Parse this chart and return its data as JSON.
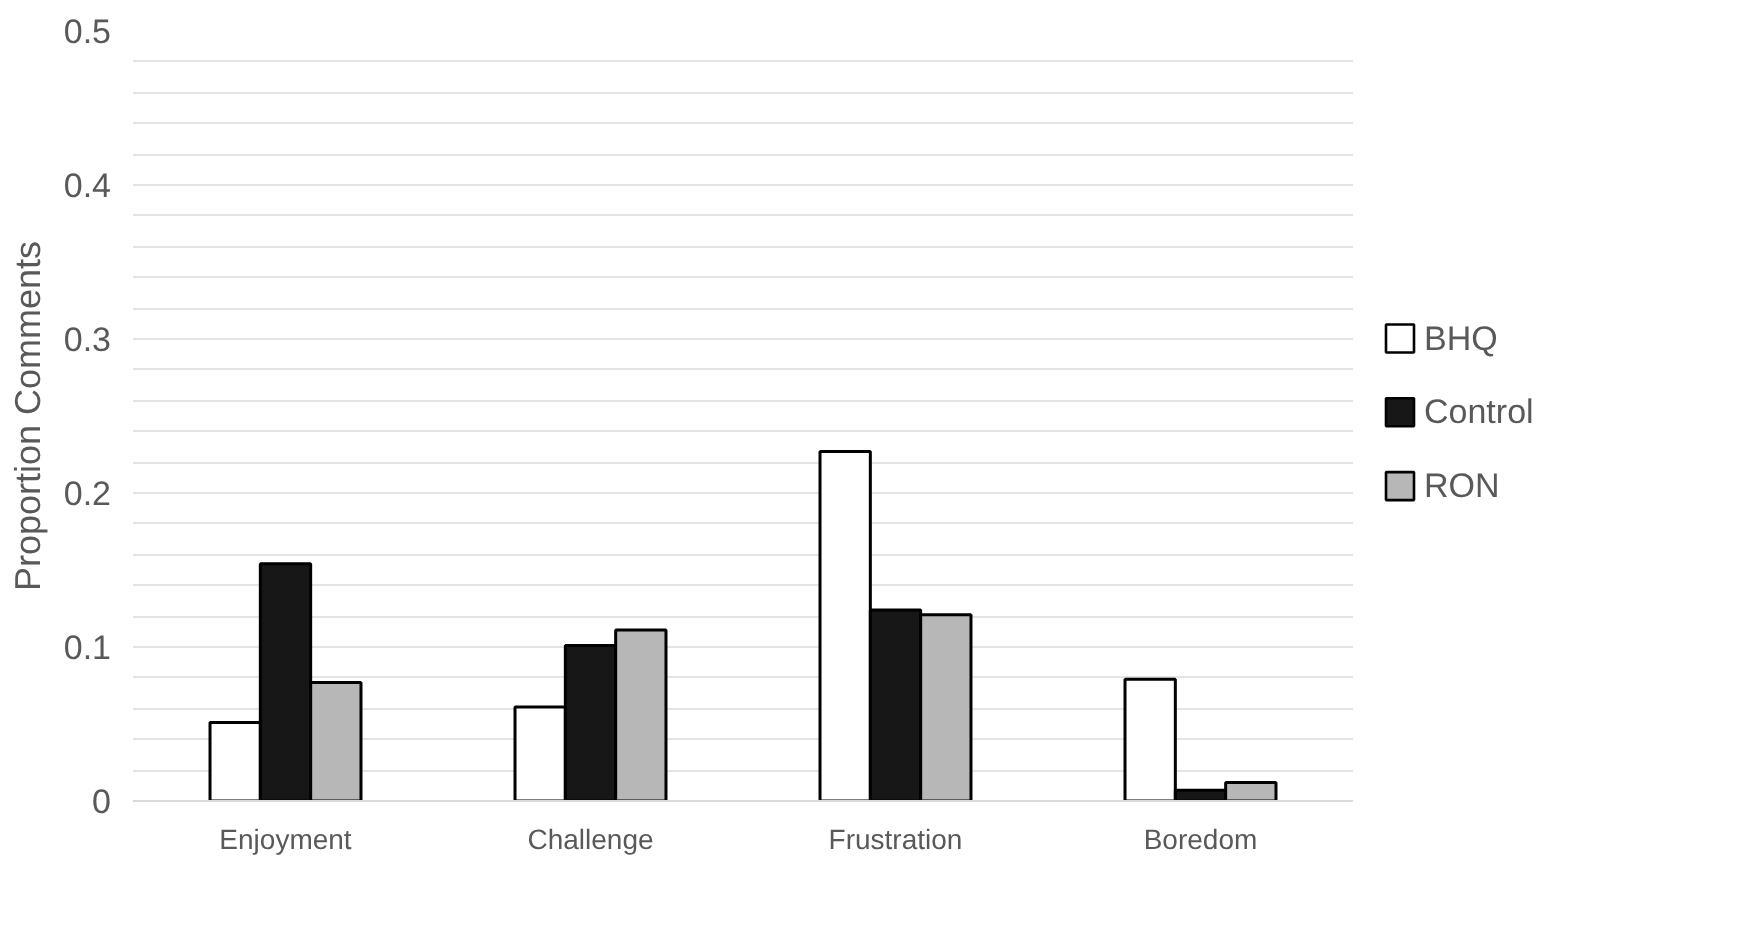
{
  "chart_data": {
    "type": "bar",
    "ylabel": "Proportion Comments",
    "categories": [
      "Enjoyment",
      "Challenge",
      "Frustration",
      "Boredom"
    ],
    "series": [
      {
        "name": "BHQ",
        "color": "#ffffff",
        "values": [
          0.051,
          0.061,
          0.227,
          0.079
        ]
      },
      {
        "name": "Control",
        "color": "#171717",
        "values": [
          0.154,
          0.101,
          0.124,
          0.007
        ]
      },
      {
        "name": "RON",
        "color": "#b7b7b7",
        "values": [
          0.077,
          0.111,
          0.121,
          0.012
        ]
      }
    ],
    "ylim": [
      0,
      0.5
    ],
    "yticks": [
      0,
      {
        "value": 0.02,
        "label": null
      },
      {
        "value": 0.04,
        "label": null
      },
      {
        "value": 0.06,
        "label": null
      },
      {
        "value": 0.08,
        "label": null
      },
      0.1,
      {
        "value": 0.12,
        "label": null
      },
      {
        "value": 0.14,
        "label": null
      },
      {
        "value": 0.16,
        "label": null
      },
      {
        "value": 0.18,
        "label": null
      },
      0.2,
      {
        "value": 0.22,
        "label": null
      },
      {
        "value": 0.24,
        "label": null
      },
      {
        "value": 0.26,
        "label": null
      },
      {
        "value": 0.28,
        "label": null
      },
      0.3,
      {
        "value": 0.32,
        "label": null
      },
      {
        "value": 0.34,
        "label": null
      },
      {
        "value": 0.36,
        "label": null
      },
      {
        "value": 0.38,
        "label": null
      },
      0.4,
      {
        "value": 0.42,
        "label": null
      },
      {
        "value": 0.44,
        "label": null
      },
      {
        "value": 0.46,
        "label": null
      },
      {
        "value": 0.48,
        "label": null
      },
      0.5
    ],
    "grid": "y",
    "legend": "right"
  }
}
